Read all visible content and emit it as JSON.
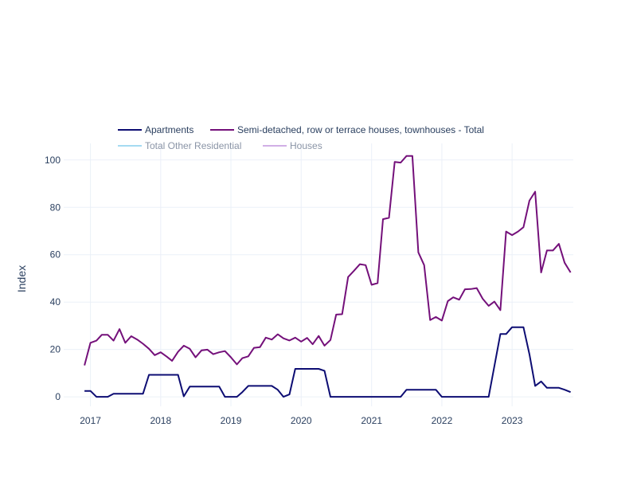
{
  "chart_data": {
    "type": "line",
    "ylabel": "Index",
    "xlabel": "",
    "grid": true,
    "legend_placement": "top-center",
    "xlim": [
      "2016-08-15",
      "2023-11-15"
    ],
    "ylim": [
      -4,
      107
    ],
    "x_ticks": [
      {
        "date": "2017-01-01",
        "label": "2017"
      },
      {
        "date": "2018-01-01",
        "label": "2018"
      },
      {
        "date": "2019-01-01",
        "label": "2019"
      },
      {
        "date": "2020-01-01",
        "label": "2020"
      },
      {
        "date": "2021-01-01",
        "label": "2021"
      },
      {
        "date": "2022-01-01",
        "label": "2022"
      },
      {
        "date": "2023-01-01",
        "label": "2023"
      }
    ],
    "y_ticks": [
      0,
      20,
      40,
      60,
      80,
      100
    ],
    "series": [
      {
        "name": "Apartments",
        "color": "#0d0d73",
        "visible": true,
        "points": [
          [
            "2016-12-01",
            2.5
          ],
          [
            "2017-01-01",
            2.5
          ],
          [
            "2017-02-01",
            0
          ],
          [
            "2017-03-01",
            0
          ],
          [
            "2017-04-01",
            0
          ],
          [
            "2017-05-01",
            1.3
          ],
          [
            "2017-06-01",
            1.3
          ],
          [
            "2017-07-01",
            1.3
          ],
          [
            "2017-08-01",
            1.3
          ],
          [
            "2017-09-01",
            1.3
          ],
          [
            "2017-10-01",
            1.3
          ],
          [
            "2017-11-01",
            9.3
          ],
          [
            "2017-12-01",
            9.3
          ],
          [
            "2018-01-01",
            9.3
          ],
          [
            "2018-02-01",
            9.3
          ],
          [
            "2018-03-01",
            9.3
          ],
          [
            "2018-04-01",
            9.3
          ],
          [
            "2018-05-01",
            0.2
          ],
          [
            "2018-06-01",
            4.3
          ],
          [
            "2018-07-01",
            4.3
          ],
          [
            "2018-08-01",
            4.3
          ],
          [
            "2018-09-01",
            4.3
          ],
          [
            "2018-10-01",
            4.3
          ],
          [
            "2018-11-01",
            4.3
          ],
          [
            "2018-12-01",
            0
          ],
          [
            "2019-01-01",
            0
          ],
          [
            "2019-02-01",
            0
          ],
          [
            "2019-03-01",
            2.0
          ],
          [
            "2019-04-01",
            4.6
          ],
          [
            "2019-05-01",
            4.6
          ],
          [
            "2019-06-01",
            4.6
          ],
          [
            "2019-07-01",
            4.6
          ],
          [
            "2019-08-01",
            4.6
          ],
          [
            "2019-09-01",
            3.0
          ],
          [
            "2019-10-01",
            0
          ],
          [
            "2019-11-01",
            1.0
          ],
          [
            "2019-12-01",
            11.8
          ],
          [
            "2020-01-01",
            11.8
          ],
          [
            "2020-02-01",
            11.8
          ],
          [
            "2020-03-01",
            11.8
          ],
          [
            "2020-04-01",
            11.8
          ],
          [
            "2020-05-01",
            11.0
          ],
          [
            "2020-06-01",
            0
          ],
          [
            "2020-07-01",
            0
          ],
          [
            "2020-08-01",
            0
          ],
          [
            "2020-09-01",
            0
          ],
          [
            "2020-10-01",
            0
          ],
          [
            "2020-11-01",
            0
          ],
          [
            "2020-12-01",
            0
          ],
          [
            "2021-01-01",
            0
          ],
          [
            "2021-02-01",
            0
          ],
          [
            "2021-03-01",
            0
          ],
          [
            "2021-04-01",
            0
          ],
          [
            "2021-05-01",
            0
          ],
          [
            "2021-06-01",
            0
          ],
          [
            "2021-07-01",
            3.0
          ],
          [
            "2021-08-01",
            3.0
          ],
          [
            "2021-09-01",
            3.0
          ],
          [
            "2021-10-01",
            3.0
          ],
          [
            "2021-11-01",
            3.0
          ],
          [
            "2021-12-01",
            3.0
          ],
          [
            "2022-01-01",
            0
          ],
          [
            "2022-02-01",
            0
          ],
          [
            "2022-03-01",
            0
          ],
          [
            "2022-04-01",
            0
          ],
          [
            "2022-05-01",
            0
          ],
          [
            "2022-06-01",
            0
          ],
          [
            "2022-07-01",
            0
          ],
          [
            "2022-08-01",
            0
          ],
          [
            "2022-09-01",
            0
          ],
          [
            "2022-10-01",
            13.0
          ],
          [
            "2022-11-01",
            26.5
          ],
          [
            "2022-12-01",
            26.5
          ],
          [
            "2023-01-01",
            29.4
          ],
          [
            "2023-02-01",
            29.4
          ],
          [
            "2023-03-01",
            29.4
          ],
          [
            "2023-04-01",
            18.0
          ],
          [
            "2023-05-01",
            4.6
          ],
          [
            "2023-06-01",
            6.5
          ],
          [
            "2023-07-01",
            3.8
          ],
          [
            "2023-08-01",
            3.8
          ],
          [
            "2023-09-01",
            3.8
          ],
          [
            "2023-10-01",
            3.0
          ],
          [
            "2023-11-01",
            2.0
          ]
        ]
      },
      {
        "name": "Semi-detached, row or terrace houses, townhouses - Total",
        "color": "#74107a",
        "visible": true,
        "points": [
          [
            "2016-12-01",
            13.3
          ],
          [
            "2017-01-01",
            22.8
          ],
          [
            "2017-02-01",
            23.7
          ],
          [
            "2017-03-01",
            26.2
          ],
          [
            "2017-04-01",
            26.2
          ],
          [
            "2017-05-01",
            23.7
          ],
          [
            "2017-06-01",
            28.6
          ],
          [
            "2017-07-01",
            22.8
          ],
          [
            "2017-08-01",
            25.6
          ],
          [
            "2017-09-01",
            24.2
          ],
          [
            "2017-10-01",
            22.4
          ],
          [
            "2017-11-01",
            20.3
          ],
          [
            "2017-12-01",
            17.6
          ],
          [
            "2018-01-01",
            18.8
          ],
          [
            "2018-02-01",
            17.0
          ],
          [
            "2018-03-01",
            15.2
          ],
          [
            "2018-04-01",
            19.0
          ],
          [
            "2018-05-01",
            21.6
          ],
          [
            "2018-06-01",
            20.3
          ],
          [
            "2018-07-01",
            16.7
          ],
          [
            "2018-08-01",
            19.6
          ],
          [
            "2018-09-01",
            19.9
          ],
          [
            "2018-10-01",
            18.0
          ],
          [
            "2018-11-01",
            18.8
          ],
          [
            "2018-12-01",
            19.3
          ],
          [
            "2019-01-01",
            16.7
          ],
          [
            "2019-02-01",
            13.7
          ],
          [
            "2019-03-01",
            16.3
          ],
          [
            "2019-04-01",
            17.1
          ],
          [
            "2019-05-01",
            20.7
          ],
          [
            "2019-06-01",
            21.0
          ],
          [
            "2019-07-01",
            25.0
          ],
          [
            "2019-08-01",
            24.2
          ],
          [
            "2019-09-01",
            26.4
          ],
          [
            "2019-10-01",
            24.7
          ],
          [
            "2019-11-01",
            23.8
          ],
          [
            "2019-12-01",
            25.0
          ],
          [
            "2020-01-01",
            23.3
          ],
          [
            "2020-02-01",
            24.9
          ],
          [
            "2020-03-01",
            22.2
          ],
          [
            "2020-04-01",
            25.7
          ],
          [
            "2020-05-01",
            21.6
          ],
          [
            "2020-06-01",
            24.0
          ],
          [
            "2020-07-01",
            34.7
          ],
          [
            "2020-08-01",
            34.9
          ],
          [
            "2020-09-01",
            50.6
          ],
          [
            "2020-10-01",
            53.2
          ],
          [
            "2020-11-01",
            56.0
          ],
          [
            "2020-12-01",
            55.6
          ],
          [
            "2021-01-01",
            47.3
          ],
          [
            "2021-02-01",
            48.0
          ],
          [
            "2021-03-01",
            75.0
          ],
          [
            "2021-04-01",
            75.6
          ],
          [
            "2021-05-01",
            99.2
          ],
          [
            "2021-06-01",
            98.9
          ],
          [
            "2021-07-01",
            101.7
          ],
          [
            "2021-08-01",
            101.7
          ],
          [
            "2021-09-01",
            61.0
          ],
          [
            "2021-10-01",
            55.6
          ],
          [
            "2021-11-01",
            32.4
          ],
          [
            "2021-12-01",
            33.7
          ],
          [
            "2022-01-01",
            32.2
          ],
          [
            "2022-02-01",
            40.4
          ],
          [
            "2022-03-01",
            42.0
          ],
          [
            "2022-04-01",
            41.0
          ],
          [
            "2022-05-01",
            45.4
          ],
          [
            "2022-06-01",
            45.5
          ],
          [
            "2022-07-01",
            45.9
          ],
          [
            "2022-08-01",
            41.4
          ],
          [
            "2022-09-01",
            38.4
          ],
          [
            "2022-10-01",
            40.2
          ],
          [
            "2022-11-01",
            36.6
          ],
          [
            "2022-12-01",
            69.8
          ],
          [
            "2023-01-01",
            68.3
          ],
          [
            "2023-02-01",
            69.8
          ],
          [
            "2023-03-01",
            71.6
          ],
          [
            "2023-04-01",
            82.8
          ],
          [
            "2023-05-01",
            86.6
          ],
          [
            "2023-06-01",
            52.5
          ],
          [
            "2023-07-01",
            61.8
          ],
          [
            "2023-08-01",
            61.8
          ],
          [
            "2023-09-01",
            64.6
          ],
          [
            "2023-10-01",
            56.6
          ],
          [
            "2023-11-01",
            52.5
          ]
        ]
      },
      {
        "name": "Total Other Residential",
        "color": "#8fd3ee",
        "visible": false,
        "points": []
      },
      {
        "name": "Houses",
        "color": "#c69ce0",
        "visible": false,
        "points": []
      }
    ]
  }
}
